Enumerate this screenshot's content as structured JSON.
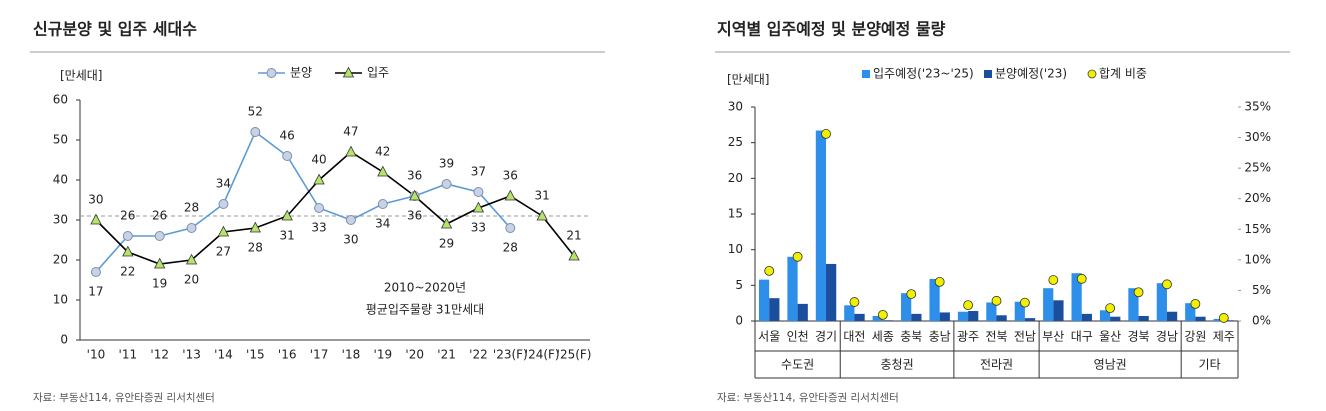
{
  "chart_data": [
    {
      "type": "line",
      "title": "신규분양 및 입주 세대수",
      "y_unit": "[만세대]",
      "categories": [
        "'10",
        "'11",
        "'12",
        "'13",
        "'14",
        "'15",
        "'16",
        "'17",
        "'18",
        "'19",
        "'20",
        "'21",
        "'22",
        "'23(F)",
        "'24(F)",
        "'25(F)"
      ],
      "series": [
        {
          "name": "분양",
          "color": "#5b9bd5",
          "marker": "circle",
          "marker_color": "#c8d2e4",
          "values": [
            17,
            26,
            26,
            28,
            34,
            52,
            46,
            33,
            30,
            34,
            36,
            39,
            37,
            28,
            null,
            null
          ]
        },
        {
          "name": "입주",
          "color": "#000000",
          "marker": "triangle",
          "marker_color": "#b5e36b",
          "values": [
            30,
            22,
            19,
            20,
            27,
            28,
            31,
            40,
            47,
            42,
            36,
            29,
            33,
            36,
            31,
            21
          ]
        }
      ],
      "ylim": [
        0,
        60
      ],
      "yticks": [
        0,
        10,
        20,
        30,
        40,
        50,
        60
      ],
      "reference_line": {
        "value": 31,
        "color": "#999999"
      },
      "annotation": [
        "2010~2020년",
        "평균입주물량 31만세대"
      ],
      "source": "자료: 부동산114, 유안타증권 리서치센터"
    },
    {
      "type": "bar",
      "title": "지역별 입주예정 및 분양예정 물량",
      "y_unit": "[만세대]",
      "groups": [
        {
          "name": "수도권",
          "categories": [
            "서울",
            "인천",
            "경기"
          ]
        },
        {
          "name": "충청권",
          "categories": [
            "대전",
            "세종",
            "충북",
            "충남"
          ]
        },
        {
          "name": "전라권",
          "categories": [
            "광주",
            "전북",
            "전남"
          ]
        },
        {
          "name": "영남권",
          "categories": [
            "부산",
            "대구",
            "울산",
            "경북",
            "경남"
          ]
        },
        {
          "name": "기타",
          "categories": [
            "강원",
            "제주"
          ]
        }
      ],
      "series": [
        {
          "name": "입주예정('23~'25)",
          "color": "#2e8fea",
          "values": [
            5.8,
            9.0,
            26.7,
            2.2,
            0.7,
            3.9,
            5.9,
            1.3,
            2.6,
            2.7,
            4.6,
            6.7,
            1.5,
            4.6,
            5.3,
            2.5,
            0.3
          ]
        },
        {
          "name": "분양예정('23)",
          "color": "#1c4e9e",
          "values": [
            3.2,
            2.4,
            8.0,
            1.0,
            0.1,
            1.0,
            1.2,
            1.4,
            0.8,
            0.4,
            2.9,
            1.0,
            0.6,
            0.7,
            1.3,
            0.6,
            0.1
          ]
        },
        {
          "name": "합계 비중",
          "type": "scatter",
          "axis": "y2",
          "color": "#f0f000",
          "values": [
            8.2,
            10.5,
            30.6,
            3.1,
            1.0,
            4.4,
            6.4,
            2.6,
            3.3,
            3.0,
            6.7,
            6.9,
            2.1,
            4.7,
            6.0,
            2.8,
            0.5
          ]
        }
      ],
      "ylim": [
        0,
        30
      ],
      "yticks": [
        0,
        5,
        10,
        15,
        20,
        25,
        30
      ],
      "y2lim": [
        0,
        35
      ],
      "y2ticks": [
        {
          "value": 0,
          "label": "0%"
        },
        {
          "value": 5,
          "label": "5%"
        },
        {
          "value": 10,
          "label": "10%"
        },
        {
          "value": 15,
          "label": "15%"
        },
        {
          "value": 20,
          "label": "20%"
        },
        {
          "value": 25,
          "label": "25%"
        },
        {
          "value": 30,
          "label": "30%"
        },
        {
          "value": 35,
          "label": "35%"
        }
      ],
      "source": "자료: 부동산114, 유안타증권 리서치센터"
    }
  ]
}
